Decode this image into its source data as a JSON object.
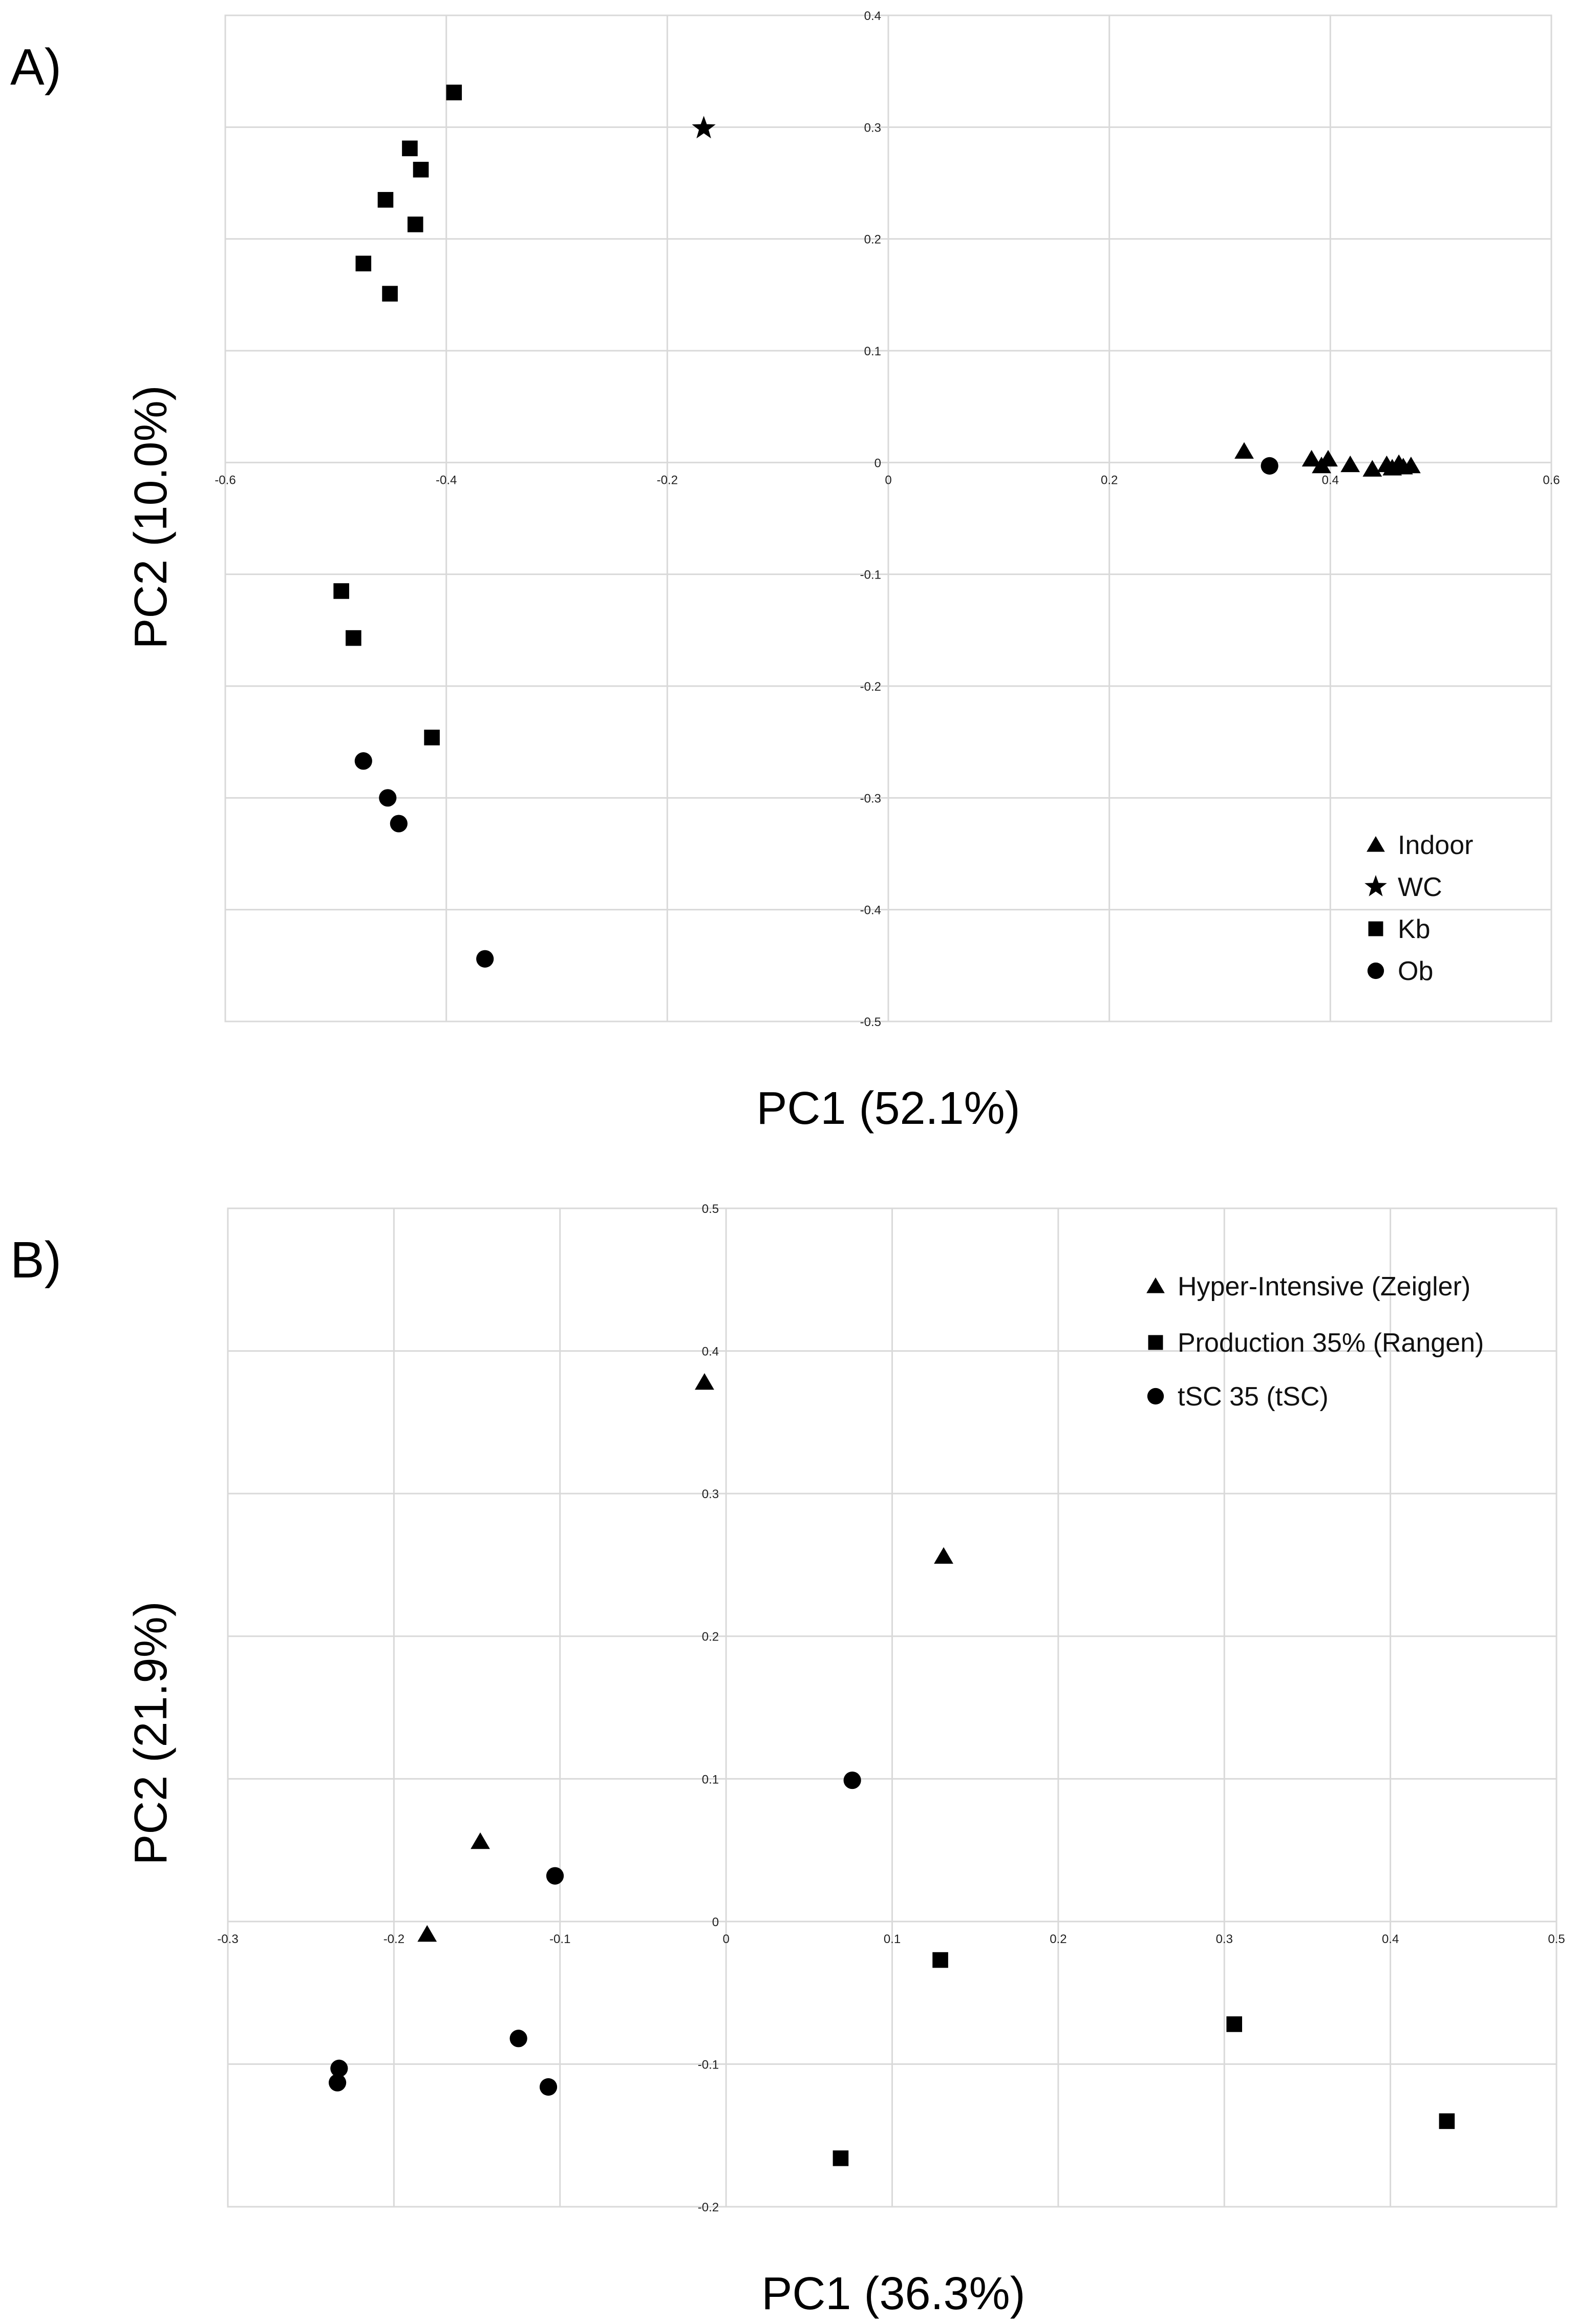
{
  "chart_data": [
    {
      "panel_label": "A)",
      "type": "scatter",
      "xlabel": "PC1 (52.1%)",
      "ylabel": "PC2 (10.0%)",
      "xlim": [
        -0.6,
        0.6
      ],
      "ylim": [
        -0.5,
        0.4
      ],
      "x_ticks": [
        -0.6,
        -0.4,
        -0.2,
        0,
        0.2,
        0.4,
        0.6
      ],
      "x_tick_labels": [
        "-0.6",
        "-0.4",
        "-0.2",
        "0",
        "0.2",
        "0.4",
        "0.6"
      ],
      "y_ticks": [
        0.4,
        0.3,
        0.2,
        0.1,
        0,
        -0.1,
        -0.2,
        -0.3,
        -0.4,
        -0.5
      ],
      "y_tick_labels": [
        "0.4",
        "0.3",
        "0.2",
        "0.1",
        "0",
        "-0.1",
        "-0.2",
        "-0.3",
        "-0.4",
        "-0.5"
      ],
      "grid": true,
      "legend_position": "bottom-right",
      "series": [
        {
          "name": "Indoor",
          "marker": "triangle",
          "points": [
            [
              0.322,
              0.01
            ],
            [
              0.383,
              0.003
            ],
            [
              0.392,
              -0.003
            ],
            [
              0.398,
              0.003
            ],
            [
              0.418,
              -0.002
            ],
            [
              0.438,
              -0.006
            ],
            [
              0.451,
              -0.002
            ],
            [
              0.456,
              -0.005
            ],
            [
              0.462,
              -0.001
            ],
            [
              0.466,
              -0.004
            ],
            [
              0.473,
              -0.003
            ]
          ]
        },
        {
          "name": "WC",
          "marker": "star",
          "points": [
            [
              -0.167,
              0.299
            ]
          ]
        },
        {
          "name": "Kb",
          "marker": "square",
          "points": [
            [
              -0.393,
              0.331
            ],
            [
              -0.433,
              0.281
            ],
            [
              -0.423,
              0.262
            ],
            [
              -0.455,
              0.235
            ],
            [
              -0.428,
              0.213
            ],
            [
              -0.475,
              0.178
            ],
            [
              -0.451,
              0.151
            ],
            [
              -0.495,
              -0.115
            ],
            [
              -0.484,
              -0.157
            ],
            [
              -0.413,
              -0.246
            ]
          ]
        },
        {
          "name": "Ob",
          "marker": "circle",
          "points": [
            [
              -0.475,
              -0.267
            ],
            [
              -0.453,
              -0.3
            ],
            [
              -0.443,
              -0.323
            ],
            [
              -0.365,
              -0.444
            ],
            [
              0.345,
              -0.003
            ]
          ]
        }
      ]
    },
    {
      "panel_label": "B)",
      "type": "scatter",
      "xlabel": "PC1 (36.3%)",
      "ylabel": "PC2 (21.9%)",
      "xlim": [
        -0.3,
        0.5
      ],
      "ylim": [
        -0.2,
        0.5
      ],
      "x_ticks": [
        -0.3,
        -0.2,
        -0.1,
        0,
        0.1,
        0.2,
        0.3,
        0.4,
        0.5
      ],
      "x_tick_labels": [
        "-0.3",
        "-0.2",
        "-0.1",
        "0",
        "0.1",
        "0.2",
        "0.3",
        "0.4",
        "0.5"
      ],
      "y_ticks": [
        0.5,
        0.4,
        0.3,
        0.2,
        0.1,
        0,
        -0.1,
        -0.2
      ],
      "y_tick_labels": [
        "0.5",
        "0.4",
        "0.3",
        "0.2",
        "0.1",
        "0",
        "-0.1",
        "-0.2"
      ],
      "grid": true,
      "legend_position": "top-right",
      "series": [
        {
          "name": "Hyper-Intensive (Zeigler)",
          "marker": "triangle",
          "points": [
            [
              -0.013,
              0.378
            ],
            [
              0.131,
              0.256
            ],
            [
              -0.148,
              0.056
            ],
            [
              -0.18,
              -0.009
            ]
          ]
        },
        {
          "name": "Production 35% (Rangen)",
          "marker": "square",
          "points": [
            [
              0.129,
              -0.027
            ],
            [
              0.306,
              -0.072
            ],
            [
              0.434,
              -0.14
            ],
            [
              0.069,
              -0.166
            ]
          ]
        },
        {
          "name": "tSC 35 (tSC)",
          "marker": "circle",
          "points": [
            [
              0.076,
              0.099
            ],
            [
              -0.103,
              0.032
            ],
            [
              -0.125,
              -0.082
            ],
            [
              -0.107,
              -0.116
            ],
            [
              -0.233,
              -0.103
            ],
            [
              -0.234,
              -0.113
            ]
          ]
        }
      ]
    }
  ]
}
